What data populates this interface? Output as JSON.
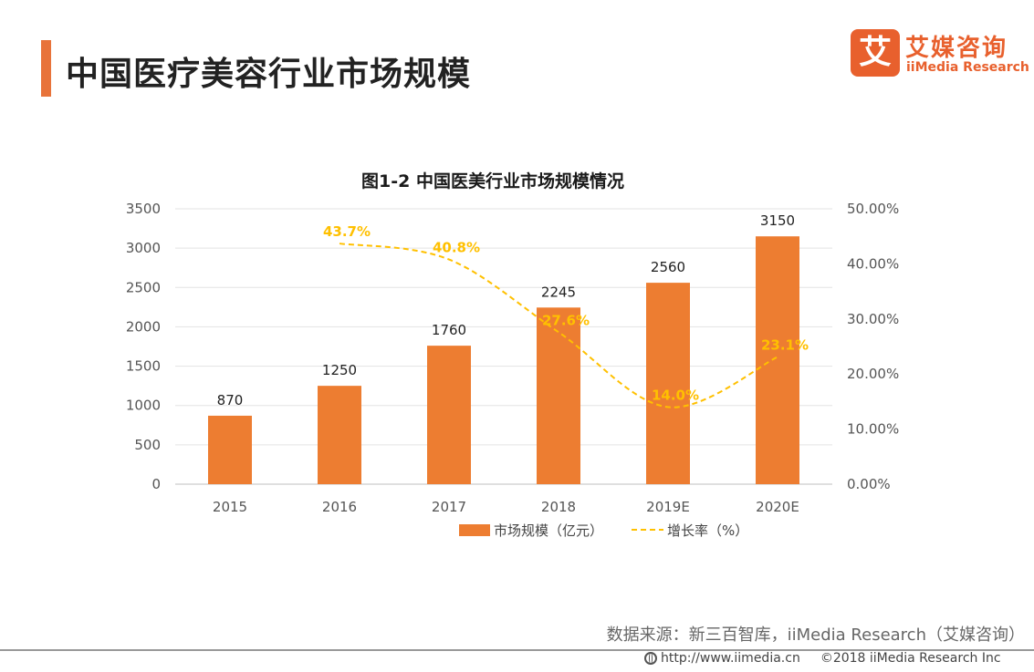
{
  "header": {
    "title": "中国医疗美容行业市场规模"
  },
  "logo": {
    "icon_char": "艾",
    "name_cn": "艾媒咨询",
    "name_en": "iiMedia Research"
  },
  "chart_data": {
    "type": "bar+line",
    "title": "图1-2 中国医美行业市场规模情况",
    "categories": [
      "2015",
      "2016",
      "2017",
      "2018",
      "2019E",
      "2020E"
    ],
    "series": [
      {
        "name": "市场规模（亿元）",
        "type": "bar",
        "axis": "left",
        "values": [
          870,
          1250,
          1760,
          2245,
          2560,
          3150
        ],
        "labels": [
          "870",
          "1250",
          "1760",
          "2245",
          "2560",
          "3150"
        ]
      },
      {
        "name": "增长率（%）",
        "type": "line",
        "style": "dashed",
        "axis": "right",
        "values": [
          null,
          43.7,
          40.8,
          27.6,
          14.0,
          23.1
        ],
        "labels": [
          "",
          "43.7%",
          "40.8%",
          "27.6%",
          "14.0%",
          "23.1%"
        ]
      }
    ],
    "y_left": {
      "min": 0,
      "max": 3500,
      "step": 500,
      "ticks": [
        "0",
        "500",
        "1000",
        "1500",
        "2000",
        "2500",
        "3000",
        "3500"
      ]
    },
    "y_right": {
      "min": 0,
      "max": 50,
      "step": 10,
      "ticks": [
        "0.00%",
        "10.00%",
        "20.00%",
        "30.00%",
        "40.00%",
        "50.00%"
      ]
    },
    "grid": true,
    "legend_position": "bottom",
    "colors": {
      "bar": "#ed7d31",
      "line": "#ffc000",
      "line_label": "#ffc000"
    }
  },
  "source_text": "数据来源：新三百智库，iiMedia Research（艾媒咨询）",
  "footer": {
    "url": "http://www.iimedia.cn",
    "copyright": "©2018  iiMedia Research  Inc"
  }
}
